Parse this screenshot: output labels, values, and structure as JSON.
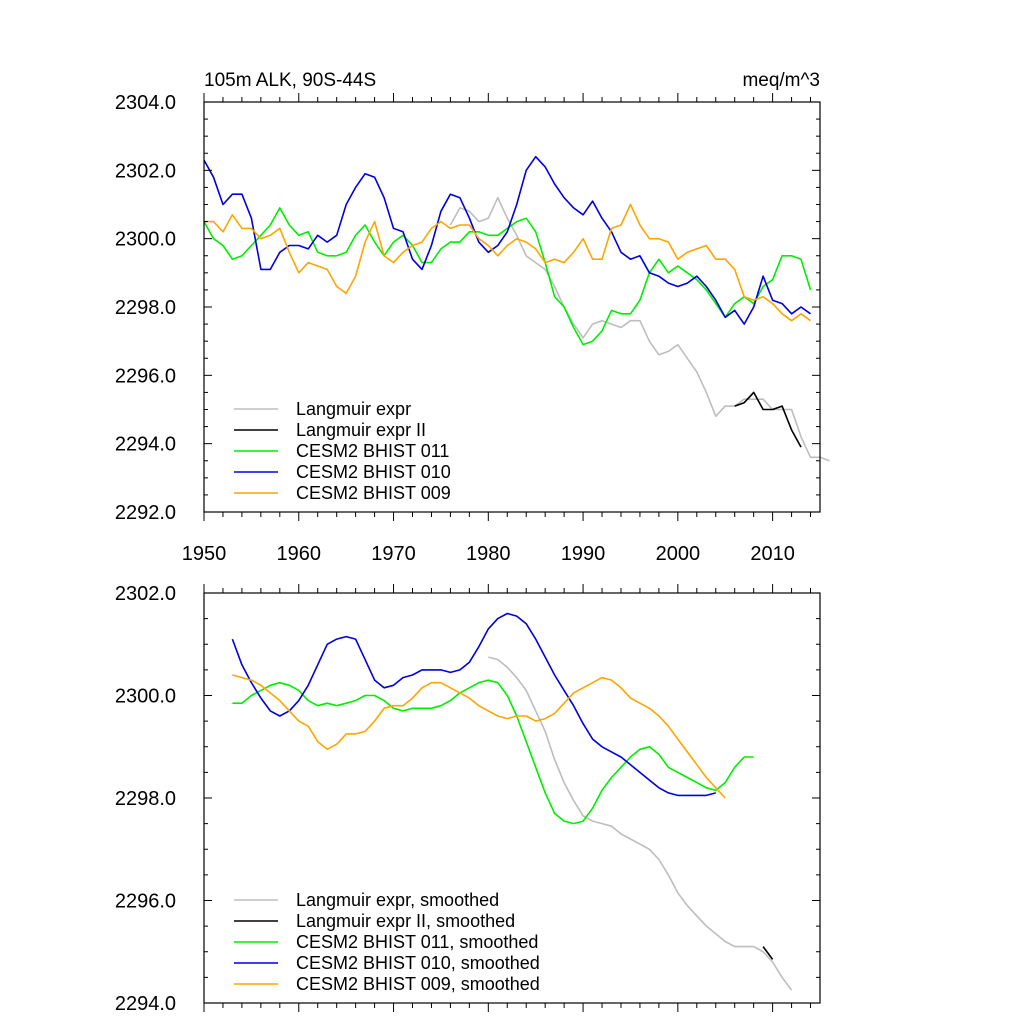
{
  "colors": {
    "langmuir": "#bdbdbd",
    "langmuir2": "#000000",
    "b011": "#00ee00",
    "b010": "#0000dd",
    "b009": "#ffa500"
  },
  "chart_data": [
    {
      "type": "line",
      "title": "105m ALK, 90S-44S",
      "units": "meq/m^3",
      "xlim": [
        1950,
        2015
      ],
      "ylim": [
        2292,
        2304
      ],
      "xticks": [
        1950,
        1960,
        1970,
        1980,
        1990,
        2000,
        2010
      ],
      "xtick_labels": [
        "1950",
        "1960",
        "1970",
        "1980",
        "1990",
        "2000",
        "2010"
      ],
      "yticks": [
        2292,
        2294,
        2296,
        2298,
        2300,
        2302,
        2304
      ],
      "ytick_labels": [
        "2292.0",
        "2294.0",
        "2296.0",
        "2298.0",
        "2300.0",
        "2302.0",
        "2304.0"
      ],
      "legend_position": "bottom-left",
      "series": [
        {
          "key": "langmuir",
          "name": "Langmuir expr",
          "x0": 1976,
          "values": [
            2300.4,
            2300.9,
            2300.8,
            2300.5,
            2300.6,
            2301.2,
            2300.6,
            2300.1,
            2299.5,
            2299.3,
            2299.1,
            2298.6,
            2298.0,
            2297.5,
            2297.1,
            2297.5,
            2297.6,
            2297.5,
            2297.4,
            2297.6,
            2297.6,
            2297.0,
            2296.6,
            2296.7,
            2296.9,
            2296.5,
            2296.1,
            2295.5,
            2294.8,
            2295.1,
            2295.1,
            2295.3,
            2295.3,
            2295.3,
            2295.0,
            2295.0,
            2295.0,
            2294.2,
            2293.6,
            2293.6,
            2293.5
          ]
        },
        {
          "key": "langmuir2",
          "name": "Langmuir expr II",
          "x0": 2006,
          "values": [
            2295.1,
            2295.2,
            2295.5,
            2295.0,
            2295.0,
            2295.1,
            2294.4,
            2293.9
          ]
        },
        {
          "key": "b011",
          "name": "CESM2 BHIST 011",
          "x0": 1950,
          "values": [
            2300.5,
            2300.0,
            2299.8,
            2299.4,
            2299.5,
            2299.8,
            2300.1,
            2300.4,
            2300.9,
            2300.4,
            2300.1,
            2300.2,
            2299.6,
            2299.5,
            2299.5,
            2299.6,
            2300.1,
            2300.4,
            2299.9,
            2299.5,
            2299.9,
            2300.1,
            2299.8,
            2299.3,
            2299.3,
            2299.7,
            2299.9,
            2299.9,
            2300.2,
            2300.2,
            2300.1,
            2300.1,
            2300.3,
            2300.5,
            2300.6,
            2300.2,
            2299.3,
            2298.3,
            2298.0,
            2297.4,
            2296.9,
            2297.0,
            2297.3,
            2297.9,
            2297.8,
            2297.8,
            2298.2,
            2299.0,
            2299.4,
            2299.0,
            2299.2,
            2299.0,
            2298.8,
            2298.5,
            2298.1,
            2297.7,
            2298.1,
            2298.3,
            2298.1,
            2298.6,
            2298.8,
            2299.5,
            2299.5,
            2299.4,
            2298.5
          ]
        },
        {
          "key": "b010",
          "name": "CESM2 BHIST 010",
          "x0": 1950,
          "values": [
            2302.3,
            2301.8,
            2301.0,
            2301.3,
            2301.3,
            2300.6,
            2299.1,
            2299.1,
            2299.6,
            2299.8,
            2299.8,
            2299.7,
            2300.1,
            2299.9,
            2300.1,
            2301.0,
            2301.5,
            2301.9,
            2301.8,
            2301.2,
            2300.3,
            2300.2,
            2299.4,
            2299.1,
            2299.8,
            2300.8,
            2301.3,
            2301.2,
            2300.6,
            2299.9,
            2299.6,
            2299.8,
            2300.2,
            2301.0,
            2302.0,
            2302.4,
            2302.1,
            2301.6,
            2301.2,
            2300.9,
            2300.7,
            2301.1,
            2300.6,
            2300.2,
            2299.6,
            2299.4,
            2299.5,
            2299.0,
            2298.9,
            2298.7,
            2298.6,
            2298.7,
            2298.9,
            2298.6,
            2298.2,
            2297.7,
            2297.9,
            2297.5,
            2298.0,
            2298.9,
            2298.2,
            2298.1,
            2297.8,
            2298.0,
            2297.8
          ]
        },
        {
          "key": "b009",
          "name": "CESM2 BHIST 009",
          "x0": 1950,
          "values": [
            2300.5,
            2300.5,
            2300.2,
            2300.7,
            2300.3,
            2300.3,
            2300.0,
            2300.1,
            2300.3,
            2299.6,
            2299.0,
            2299.3,
            2299.2,
            2299.1,
            2298.6,
            2298.4,
            2298.9,
            2299.9,
            2300.5,
            2299.5,
            2299.3,
            2299.6,
            2299.8,
            2299.9,
            2300.3,
            2300.5,
            2300.3,
            2300.4,
            2300.4,
            2300.0,
            2299.8,
            2299.5,
            2299.8,
            2300.0,
            2299.9,
            2299.7,
            2299.3,
            2299.4,
            2299.3,
            2299.6,
            2300.0,
            2299.4,
            2299.4,
            2300.3,
            2300.4,
            2301.0,
            2300.4,
            2300.0,
            2300.0,
            2299.9,
            2299.4,
            2299.6,
            2299.7,
            2299.8,
            2299.4,
            2299.4,
            2299.1,
            2298.3,
            2298.2,
            2298.3,
            2298.1,
            2297.8,
            2297.6,
            2297.8,
            2297.6
          ]
        }
      ]
    },
    {
      "type": "line",
      "title": "",
      "xlim": [
        1950,
        2015
      ],
      "ylim": [
        2294,
        2302
      ],
      "xticks": [
        1950,
        1960,
        1970,
        1980,
        1990,
        2000,
        2010
      ],
      "yticks": [
        2294,
        2296,
        2298,
        2300,
        2302
      ],
      "ytick_labels": [
        "2294.0",
        "2296.0",
        "2298.0",
        "2300.0",
        "2302.0"
      ],
      "legend_position": "bottom-left",
      "series": [
        {
          "key": "langmuir",
          "name": "Langmuir expr, smoothed",
          "x0": 1980,
          "values": [
            2300.75,
            2300.7,
            2300.55,
            2300.35,
            2300.1,
            2299.7,
            2299.3,
            2298.75,
            2298.3,
            2297.95,
            2297.65,
            2297.55,
            2297.5,
            2297.45,
            2297.3,
            2297.2,
            2297.1,
            2297.0,
            2296.8,
            2296.5,
            2296.15,
            2295.9,
            2295.7,
            2295.5,
            2295.35,
            2295.2,
            2295.1,
            2295.1,
            2295.1,
            2295.0,
            2294.8,
            2294.5,
            2294.25
          ]
        },
        {
          "key": "langmuir2",
          "name": "Langmuir expr II, smoothed",
          "x0": 2009,
          "values": [
            2295.1,
            2294.85
          ]
        },
        {
          "key": "b011",
          "name": "CESM2 BHIST 011, smoothed",
          "x0": 1953,
          "values": [
            2299.85,
            2299.85,
            2300.0,
            2300.1,
            2300.2,
            2300.25,
            2300.2,
            2300.1,
            2299.9,
            2299.8,
            2299.85,
            2299.8,
            2299.85,
            2299.9,
            2300.0,
            2300.0,
            2299.9,
            2299.75,
            2299.7,
            2299.75,
            2299.75,
            2299.75,
            2299.8,
            2299.9,
            2300.05,
            2300.15,
            2300.25,
            2300.3,
            2300.25,
            2300.0,
            2299.6,
            2299.1,
            2298.6,
            2298.1,
            2297.7,
            2297.55,
            2297.5,
            2297.55,
            2297.8,
            2298.15,
            2298.4,
            2298.6,
            2298.8,
            2298.95,
            2299.0,
            2298.85,
            2298.6,
            2298.5,
            2298.4,
            2298.3,
            2298.2,
            2298.15,
            2298.3,
            2298.6,
            2298.8,
            2298.8
          ]
        },
        {
          "key": "b010",
          "name": "CESM2 BHIST 010, smoothed",
          "x0": 1953,
          "values": [
            2301.1,
            2300.6,
            2300.25,
            2299.95,
            2299.7,
            2299.6,
            2299.7,
            2299.9,
            2300.2,
            2300.6,
            2301.0,
            2301.1,
            2301.15,
            2301.1,
            2300.7,
            2300.3,
            2300.15,
            2300.2,
            2300.35,
            2300.4,
            2300.5,
            2300.5,
            2300.5,
            2300.45,
            2300.5,
            2300.65,
            2300.95,
            2301.3,
            2301.5,
            2301.6,
            2301.55,
            2301.4,
            2301.1,
            2300.75,
            2300.4,
            2300.1,
            2299.8,
            2299.45,
            2299.15,
            2299.0,
            2298.9,
            2298.8,
            2298.65,
            2298.5,
            2298.35,
            2298.2,
            2298.1,
            2298.05,
            2298.05,
            2298.05,
            2298.05,
            2298.1
          ]
        },
        {
          "key": "b009",
          "name": "CESM2 BHIST 009, smoothed",
          "x0": 1953,
          "values": [
            2300.4,
            2300.35,
            2300.3,
            2300.2,
            2300.05,
            2299.9,
            2299.7,
            2299.5,
            2299.4,
            2299.1,
            2298.95,
            2299.05,
            2299.25,
            2299.25,
            2299.3,
            2299.5,
            2299.75,
            2299.8,
            2299.8,
            2299.95,
            2300.15,
            2300.25,
            2300.25,
            2300.15,
            2300.05,
            2299.95,
            2299.8,
            2299.7,
            2299.6,
            2299.55,
            2299.6,
            2299.6,
            2299.5,
            2299.55,
            2299.65,
            2299.85,
            2300.05,
            2300.15,
            2300.25,
            2300.35,
            2300.3,
            2300.15,
            2299.95,
            2299.85,
            2299.75,
            2299.6,
            2299.4,
            2299.15,
            2298.9,
            2298.65,
            2298.4,
            2298.2,
            2298.0
          ]
        }
      ]
    }
  ]
}
